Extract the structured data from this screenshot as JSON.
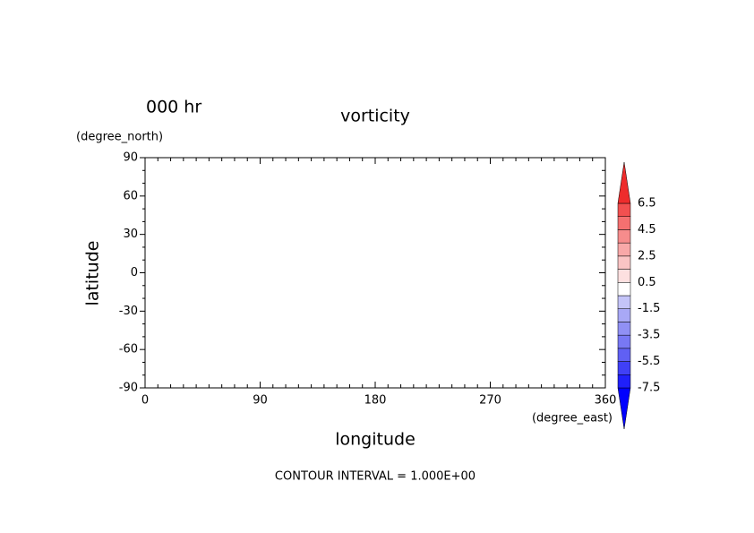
{
  "chart_data": {
    "type": "contour",
    "title": "vorticity",
    "time_label": "000 hr",
    "x_label": "longitude",
    "y_label": "latitude",
    "x_unit": "(degree_east)",
    "y_unit": "(degree_north)",
    "footer": "CONTOUR INTERVAL = 1.000E+00",
    "xlim": [
      0,
      360
    ],
    "ylim": [
      -90,
      90
    ],
    "xticks": [
      0,
      90,
      180,
      270,
      360
    ],
    "yticks": [
      -90,
      -60,
      -30,
      0,
      30,
      60,
      90
    ],
    "xminorticks": [
      10,
      20,
      30,
      40,
      50,
      60,
      70,
      80,
      100,
      110,
      120,
      130,
      140,
      150,
      160,
      170,
      190,
      200,
      210,
      220,
      230,
      240,
      250,
      260,
      280,
      290,
      300,
      310,
      320,
      330,
      340,
      350
    ],
    "yminorticks": [
      -80,
      -70,
      -50,
      -40,
      -20,
      -10,
      10,
      20,
      40,
      50,
      70,
      80
    ],
    "levels": [
      -7.5,
      -6.5,
      -5.5,
      -4.5,
      -3.5,
      -2.5,
      -1.5,
      -0.5,
      0.5,
      1.5,
      2.5,
      3.5,
      4.5,
      5.5,
      6.5
    ],
    "colorbar_ticks": [
      -7.5,
      -5.5,
      -3.5,
      -1.5,
      0.5,
      2.5,
      4.5,
      6.5
    ],
    "colors": [
      "#0000ff",
      "#2020fa",
      "#4040f6",
      "#6060f4",
      "#7878f4",
      "#9090f4",
      "#a8a8f6",
      "#c4c4f8",
      "#ffffff",
      "#fde0e0",
      "#fac4c4",
      "#f8a8a8",
      "#f68c8c",
      "#f47070",
      "#f25050",
      "#ee2c2c"
    ]
  }
}
